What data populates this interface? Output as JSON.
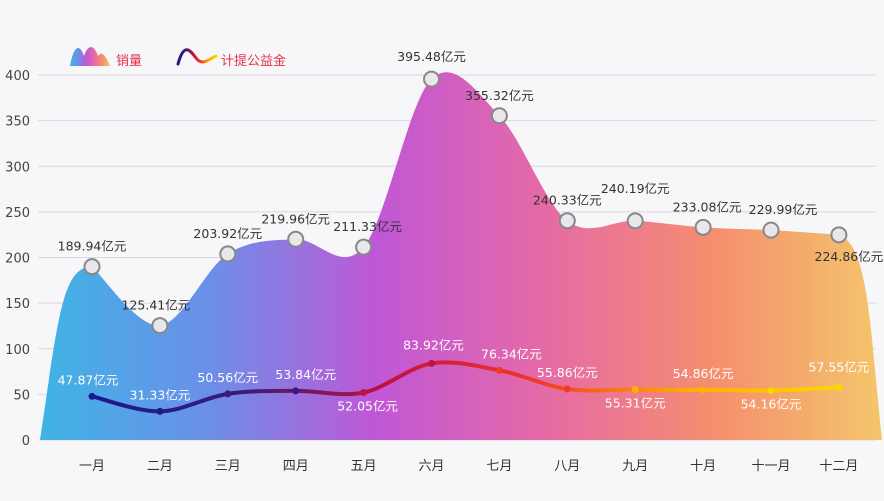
{
  "chart_data": {
    "type": "area",
    "categories": [
      "一月",
      "二月",
      "三月",
      "四月",
      "五月",
      "六月",
      "七月",
      "八月",
      "九月",
      "十月",
      "十一月",
      "十二月"
    ],
    "series": [
      {
        "name": "销量",
        "kind": "area",
        "values": [
          189.94,
          125.41,
          203.92,
          219.96,
          211.33,
          395.48,
          355.32,
          240.33,
          240.19,
          233.08,
          229.99,
          224.86
        ],
        "labels": [
          "189.94亿元",
          "125.41亿元",
          "203.92亿元",
          "219.96亿元",
          "211.33亿元",
          "395.48亿元",
          "355.32亿元",
          "240.33亿元",
          "240.19亿元",
          "233.08亿元",
          "229.99亿元",
          "224.86亿元"
        ]
      },
      {
        "name": "计提公益金",
        "kind": "line",
        "values": [
          47.87,
          31.33,
          50.56,
          53.84,
          52.05,
          83.92,
          76.34,
          55.86,
          55.31,
          54.86,
          54.16,
          57.55
        ],
        "labels": [
          "47.87亿元",
          "31.33亿元",
          "50.56亿元",
          "53.84亿元",
          "52.05亿元",
          "83.92亿元",
          "76.34亿元",
          "55.86亿元",
          "55.31亿元",
          "54.86亿元",
          "54.16亿元",
          "57.55亿元"
        ]
      }
    ],
    "yticks": [
      "0",
      "50",
      "100",
      "150",
      "200",
      "250",
      "300",
      "350",
      "400"
    ],
    "ylim": [
      0,
      400
    ],
    "grid": true,
    "legend_position": "top-left",
    "colors": {
      "area_gradient": [
        "#3fb4e6",
        "#6b8fe8",
        "#c057d6",
        "#e66aa6",
        "#f58e6e",
        "#f4c66b"
      ],
      "line_gradient": [
        "#1a1a8c",
        "#3a1a7a",
        "#c21240",
        "#f03a2a",
        "#ffb000",
        "#ffd400"
      ],
      "marker_fill": "#e8e8ec",
      "marker_stroke": "#888888",
      "grid": "#d9d9de",
      "legend_text": "#e6334b"
    }
  }
}
